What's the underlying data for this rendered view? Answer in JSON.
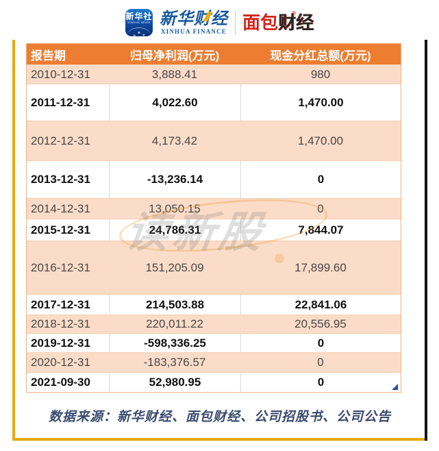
{
  "brand": {
    "xinhua_icon": {
      "cn": "新华社",
      "en": "XINHUA NEWS"
    },
    "xinhua_finance": {
      "cn": "新华财经",
      "en": "XINHUA FINANCE"
    },
    "mianbao": {
      "part1": "面包",
      "part2": "财经",
      "reg": "®"
    }
  },
  "table": {
    "headers": [
      "报告期",
      "归母净利润(万元)",
      "现金分红总额(万元)"
    ],
    "rows": [
      {
        "period": "2010-12-31",
        "net_profit": "3,888.41",
        "dividend": "980"
      },
      {
        "period": "2011-12-31",
        "net_profit": "4,022.60",
        "dividend": "1,470.00"
      },
      {
        "period": "2012-12-31",
        "net_profit": "4,173.42",
        "dividend": "1,470.00"
      },
      {
        "period": "2013-12-31",
        "net_profit": "-13,236.14",
        "dividend": "0"
      },
      {
        "period": "2014-12-31",
        "net_profit": "13,050.15",
        "dividend": "0"
      },
      {
        "period": "2015-12-31",
        "net_profit": "24,786.31",
        "dividend": "7,844.07"
      },
      {
        "period": "2016-12-31",
        "net_profit": "151,205.09",
        "dividend": "17,899.60"
      },
      {
        "period": "2017-12-31",
        "net_profit": "214,503.88",
        "dividend": "22,841.06"
      },
      {
        "period": "2018-12-31",
        "net_profit": "220,011.22",
        "dividend": "20,556.95"
      },
      {
        "period": "2019-12-31",
        "net_profit": "-598,336.25",
        "dividend": "0"
      },
      {
        "period": "2020-12-31",
        "net_profit": "-183,376.57",
        "dividend": "0"
      },
      {
        "period": "2021-09-30",
        "net_profit": "52,980.95",
        "dividend": "0"
      }
    ]
  },
  "chart_data": {
    "type": "table",
    "title": "",
    "columns": [
      "报告期",
      "归母净利润(万元)",
      "现金分红总额(万元)"
    ],
    "rows": [
      [
        "2010-12-31",
        3888.41,
        980
      ],
      [
        "2011-12-31",
        4022.6,
        1470.0
      ],
      [
        "2012-12-31",
        4173.42,
        1470.0
      ],
      [
        "2013-12-31",
        -13236.14,
        0
      ],
      [
        "2014-12-31",
        13050.15,
        0
      ],
      [
        "2015-12-31",
        24786.31,
        7844.07
      ],
      [
        "2016-12-31",
        151205.09,
        17899.6
      ],
      [
        "2017-12-31",
        214503.88,
        22841.06
      ],
      [
        "2018-12-31",
        220011.22,
        20556.95
      ],
      [
        "2019-12-31",
        -598336.25,
        0
      ],
      [
        "2020-12-31",
        -183376.57,
        0
      ],
      [
        "2021-09-30",
        52980.95,
        0
      ]
    ]
  },
  "watermark": "读新股",
  "footer": "数据来源：新华财经、面包财经、公司招股书、公司公告",
  "colors": {
    "header_bg": "#ED7D31",
    "row_peach": "#FBDCC8",
    "frame_gold": "#E9A912",
    "frame_black": "#151515",
    "footer_navy": "#3A4A6E",
    "brand_blue": "#17599f",
    "brand_red": "#d3251a"
  }
}
